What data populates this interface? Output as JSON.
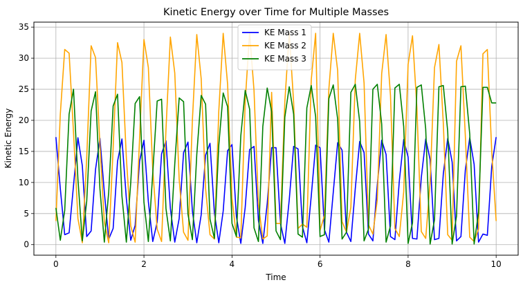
{
  "chart_data": {
    "type": "line",
    "title": "Kinetic Energy over Time for Multiple Masses",
    "xlabel": "Time",
    "ylabel": "Kinetic Energy",
    "xlim": [
      -0.5,
      10.5
    ],
    "ylim": [
      -1.7,
      35.8
    ],
    "xticks": [
      0,
      2,
      4,
      6,
      8,
      10
    ],
    "yticks": [
      0,
      5,
      10,
      15,
      20,
      25,
      30,
      35
    ],
    "grid": true,
    "legend_position": "top-center",
    "x": [
      0.0,
      0.1,
      0.2,
      0.3,
      0.4,
      0.5,
      0.6,
      0.7,
      0.8,
      0.9,
      1.0,
      1.1,
      1.2,
      1.3,
      1.4,
      1.5,
      1.6,
      1.7,
      1.8,
      1.9,
      2.0,
      2.1,
      2.2,
      2.3,
      2.4,
      2.5,
      2.6,
      2.7,
      2.8,
      2.9,
      3.0,
      3.1,
      3.2,
      3.3,
      3.4,
      3.5,
      3.6,
      3.7,
      3.8,
      3.9,
      4.0,
      4.1,
      4.2,
      4.3,
      4.4,
      4.5,
      4.6,
      4.7,
      4.8,
      4.9,
      5.0,
      5.1,
      5.2,
      5.3,
      5.4,
      5.5,
      5.6,
      5.7,
      5.8,
      5.9,
      6.0,
      6.1,
      6.2,
      6.3,
      6.4,
      6.5,
      6.6,
      6.7,
      6.8,
      6.9,
      7.0,
      7.1,
      7.2,
      7.3,
      7.4,
      7.5,
      7.6,
      7.7,
      7.8,
      7.9,
      8.0,
      8.1,
      8.2,
      8.3,
      8.4,
      8.5,
      8.6,
      8.7,
      8.8,
      8.9,
      9.0,
      9.1,
      9.2,
      9.3,
      9.4,
      9.5,
      9.6,
      9.7,
      9.8,
      9.9,
      10.0
    ],
    "series": [
      {
        "name": "KE Mass 1",
        "color": "#0000ff",
        "values": [
          17.3,
          9.0,
          1.6,
          1.9,
          9.5,
          17.2,
          12.7,
          1.3,
          2.2,
          12.1,
          17.1,
          8.4,
          0.9,
          2.6,
          13.4,
          17.0,
          7.4,
          0.7,
          3.1,
          13.4,
          16.8,
          6.9,
          0.5,
          3.6,
          14.6,
          16.7,
          5.8,
          0.4,
          4.2,
          14.8,
          16.5,
          5.4,
          0.3,
          4.8,
          14.4,
          16.3,
          5.1,
          0.3,
          5.4,
          15.1,
          16.1,
          4.5,
          0.2,
          6.0,
          15.3,
          15.8,
          3.9,
          0.2,
          6.6,
          15.6,
          15.6,
          3.4,
          0.2,
          7.2,
          15.8,
          15.4,
          2.9,
          0.3,
          7.8,
          16.0,
          15.6,
          2.4,
          0.4,
          8.4,
          16.4,
          15.2,
          2.0,
          0.5,
          9.0,
          16.6,
          14.8,
          1.7,
          0.6,
          9.6,
          16.8,
          14.5,
          1.3,
          0.8,
          10.2,
          16.9,
          14.1,
          1.0,
          0.9,
          10.8,
          17.0,
          13.7,
          0.8,
          1.0,
          11.4,
          17.1,
          13.3,
          0.6,
          1.3,
          12.0,
          17.2,
          12.9,
          0.4,
          1.7,
          1.5,
          12.6,
          17.3
        ]
      },
      {
        "name": "KE Mass 2",
        "color": "#ffa500",
        "values": [
          3.8,
          21.0,
          31.4,
          30.8,
          18.0,
          4.2,
          0.3,
          14.0,
          32.0,
          30.1,
          16.0,
          3.6,
          0.3,
          15.5,
          32.5,
          29.3,
          14.0,
          3.0,
          0.4,
          17.0,
          33.0,
          28.5,
          12.0,
          2.5,
          0.5,
          18.5,
          33.4,
          27.6,
          10.5,
          2.0,
          0.7,
          20.0,
          33.8,
          26.7,
          9.0,
          1.6,
          0.9,
          21.5,
          34.0,
          25.8,
          7.5,
          1.2,
          1.1,
          23.0,
          34.1,
          24.8,
          6.5,
          0.9,
          1.4,
          24.5,
          3.4,
          3.4,
          23.0,
          34.0,
          22.9,
          2.6,
          3.3,
          2.8,
          26.5,
          34.0,
          2.3,
          4.7,
          25.0,
          34.0,
          28.0,
          3.7,
          2.0,
          6.0,
          26.5,
          34.0,
          26.0,
          3.2,
          1.7,
          7.2,
          27.5,
          33.8,
          24.0,
          2.6,
          1.3,
          8.5,
          29.0,
          33.6,
          22.0,
          2.1,
          1.0,
          10.0,
          28.5,
          32.2,
          19.5,
          1.6,
          0.7,
          29.5,
          32.0,
          17.5,
          1.2,
          0.5,
          2.5,
          30.7,
          31.4,
          15.0,
          3.8
        ]
      },
      {
        "name": "KE Mass 3",
        "color": "#008000",
        "values": [
          5.9,
          0.7,
          5.5,
          21.0,
          25.0,
          10.5,
          0.6,
          7.0,
          21.5,
          24.6,
          9.0,
          0.4,
          8.5,
          22.3,
          24.2,
          7.8,
          0.4,
          10.0,
          22.7,
          23.8,
          6.8,
          0.5,
          11.5,
          23.1,
          23.4,
          5.8,
          0.6,
          13.0,
          23.6,
          23.0,
          4.9,
          0.8,
          14.5,
          24.0,
          22.6,
          4.1,
          1.0,
          16.0,
          24.4,
          22.2,
          3.4,
          1.3,
          17.5,
          24.8,
          21.8,
          2.7,
          0.5,
          19.0,
          25.2,
          21.4,
          2.2,
          0.8,
          20.5,
          25.4,
          21.0,
          1.7,
          1.2,
          22.0,
          25.6,
          20.6,
          1.3,
          1.6,
          23.5,
          25.7,
          20.2,
          0.9,
          2.0,
          24.5,
          25.8,
          19.8,
          0.6,
          2.5,
          25.0,
          25.8,
          19.4,
          0.4,
          3.0,
          25.2,
          25.8,
          19.0,
          0.2,
          3.5,
          25.3,
          25.7,
          18.6,
          0.1,
          4.0,
          25.4,
          25.6,
          18.2,
          0.1,
          4.6,
          25.4,
          25.5,
          17.8,
          0.1,
          5.2,
          25.3,
          25.3,
          22.8,
          22.8
        ]
      }
    ]
  }
}
